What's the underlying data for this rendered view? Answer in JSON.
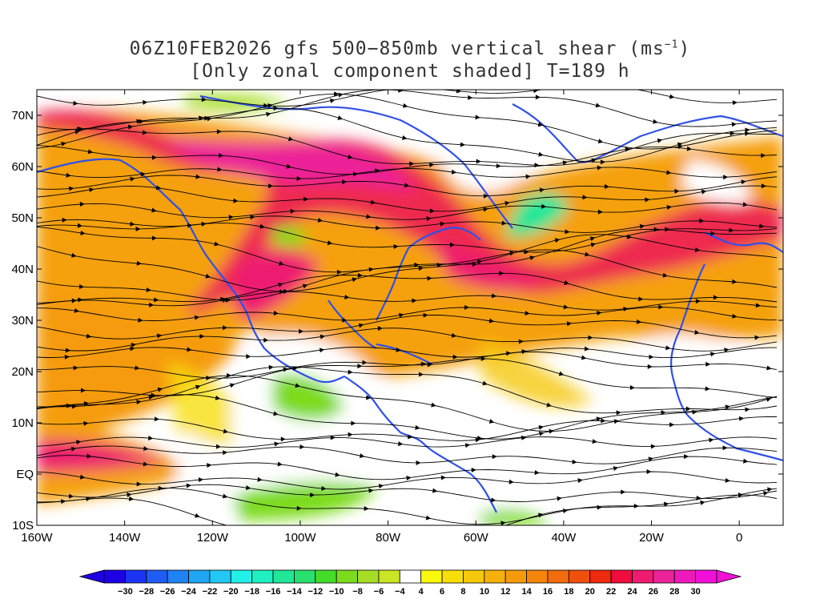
{
  "title": {
    "line1_prefix": "06Z10FEB2026 gfs 500−850mb vertical shear (ms",
    "line1_sup": "−1",
    "line1_suffix": ")",
    "line2": "[Only zonal component shaded] T=189 h"
  },
  "map": {
    "lon_range": [
      -160,
      10
    ],
    "lat_range": [
      -10,
      75
    ],
    "lat_labels": [
      {
        "lat": 70,
        "text": "70N"
      },
      {
        "lat": 60,
        "text": "60N"
      },
      {
        "lat": 50,
        "text": "50N"
      },
      {
        "lat": 40,
        "text": "40N"
      },
      {
        "lat": 30,
        "text": "30N"
      },
      {
        "lat": 20,
        "text": "20N"
      },
      {
        "lat": 10,
        "text": "10N"
      },
      {
        "lat": 0,
        "text": "EQ"
      },
      {
        "lat": -10,
        "text": "10S"
      }
    ],
    "lon_labels": [
      {
        "lon": -160,
        "text": "160W"
      },
      {
        "lon": -140,
        "text": "140W"
      },
      {
        "lon": -120,
        "text": "120W"
      },
      {
        "lon": -100,
        "text": "100W"
      },
      {
        "lon": -80,
        "text": "80W"
      },
      {
        "lon": -60,
        "text": "60W"
      },
      {
        "lon": -40,
        "text": "40W"
      },
      {
        "lon": -20,
        "text": "20W"
      },
      {
        "lon": 0,
        "text": "0"
      }
    ]
  },
  "colorbar": {
    "labels": [
      "−30",
      "−28",
      "−26",
      "−24",
      "−22",
      "−20",
      "−18",
      "−16",
      "−14",
      "−12",
      "−10",
      "−8",
      "−6",
      "−4",
      "4",
      "6",
      "8",
      "10",
      "12",
      "14",
      "16",
      "18",
      "20",
      "22",
      "24",
      "26",
      "28",
      "30"
    ],
    "colors": [
      "#1e00e6",
      "#1d33f4",
      "#1e5cf5",
      "#1f82f5",
      "#21a5f4",
      "#22c8f3",
      "#22f0e8",
      "#1ef0c2",
      "#21e799",
      "#28e06f",
      "#44dc28",
      "#7ddb1e",
      "#a6dd24",
      "#c9e524",
      "#ffffff",
      "#f9f90a",
      "#f7df0a",
      "#f5c80b",
      "#f5b00b",
      "#f59b0b",
      "#f5850b",
      "#f26b0c",
      "#f0500d",
      "#ee2a0f",
      "#ee0d3e",
      "#ee1b70",
      "#ec2299",
      "#ef19bb",
      "#f010d8"
    ]
  },
  "legend_colors": {
    "coast": "#3050e8",
    "streamline": "#000000"
  }
}
